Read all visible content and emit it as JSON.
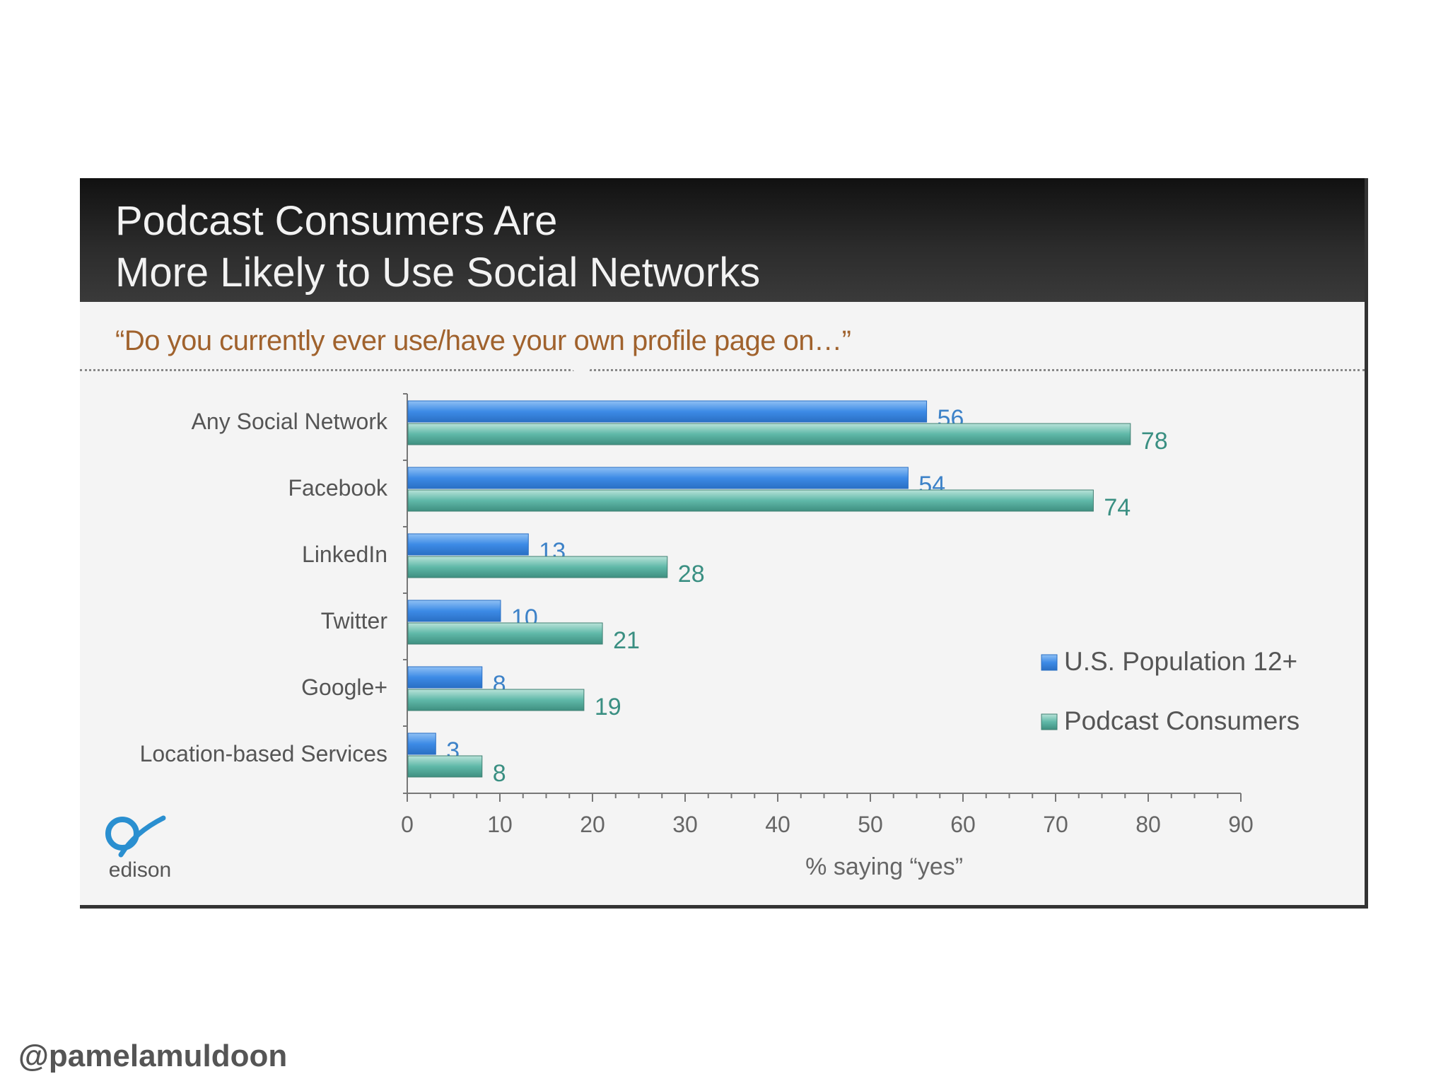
{
  "slide": {
    "title": "Podcast Consumers Are\nMore Likely to Use Social Networks",
    "question": "“Do you currently ever use/have your own profile page on…”",
    "brand": "edison"
  },
  "watermark": "@pamelamuldoon",
  "colors": {
    "us_population": "#3d8be6",
    "podcast_consumers": "#5fb8a8",
    "header_bg": "#1c1c1c",
    "question_text": "#a0622d"
  },
  "chart_data": {
    "type": "bar",
    "orientation": "horizontal",
    "categories": [
      "Any Social Network",
      "Facebook",
      "LinkedIn",
      "Twitter",
      "Google+",
      "Location-based Services"
    ],
    "series": [
      {
        "name": "U.S. Population 12+",
        "values": [
          56,
          54,
          13,
          10,
          8,
          3
        ]
      },
      {
        "name": "Podcast Consumers",
        "values": [
          78,
          74,
          28,
          21,
          19,
          8
        ]
      }
    ],
    "xlabel": "% saying “yes”",
    "xlim": [
      0,
      90
    ],
    "xticks": [
      0,
      10,
      20,
      30,
      40,
      50,
      60,
      70,
      80,
      90
    ],
    "legend_position": "right"
  }
}
